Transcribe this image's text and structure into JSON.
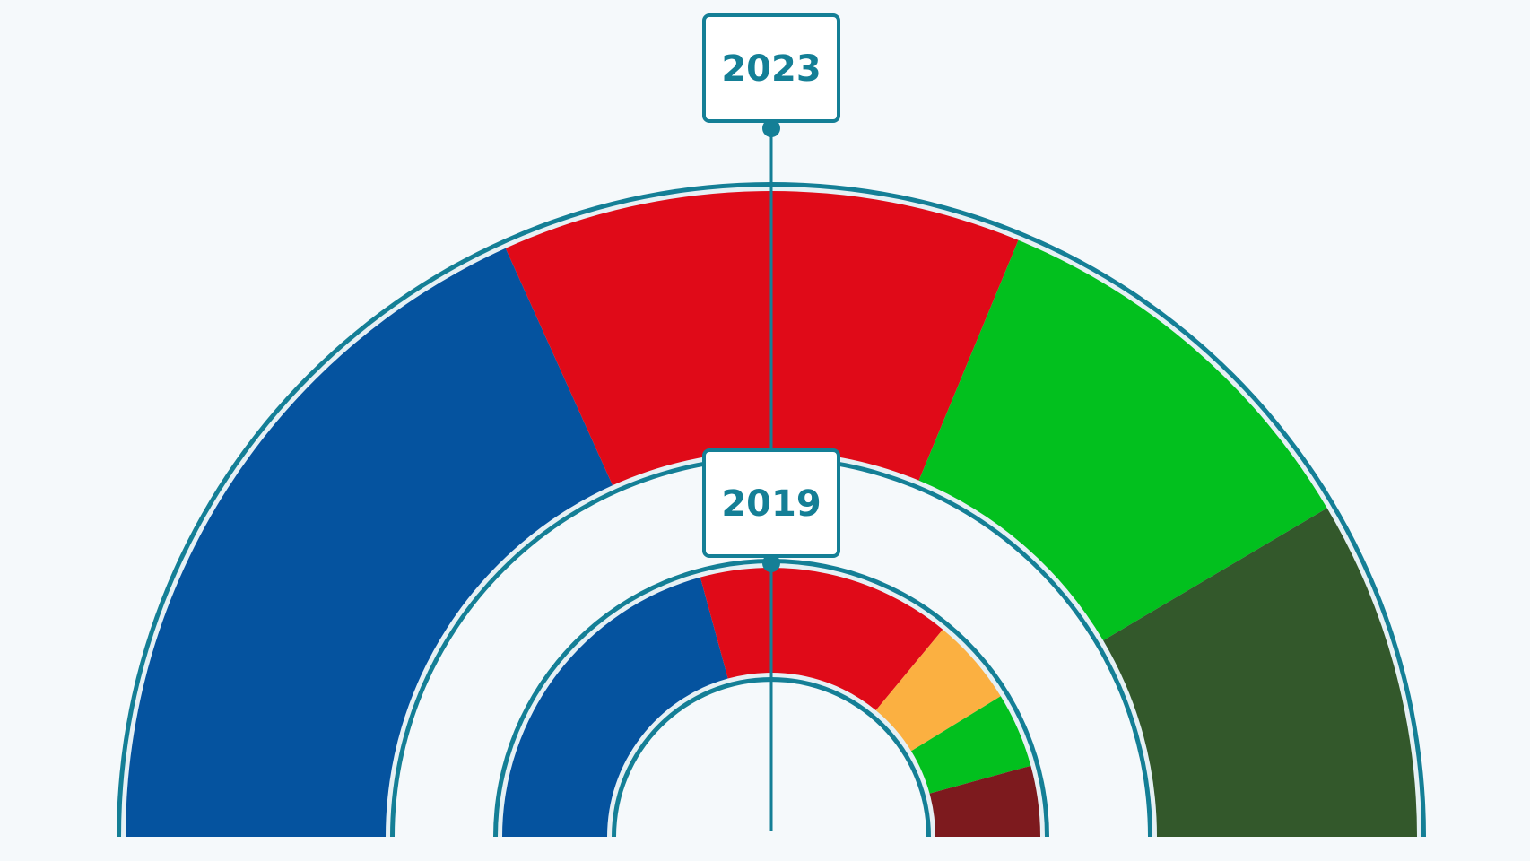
{
  "colors": {
    "frame": "#147f96",
    "background": "#f5f9fb",
    "box_fill": "#ffffff"
  },
  "chart_data": [
    {
      "type": "pie",
      "variant": "parliament-semicircle",
      "year_label": "2023",
      "slices": [
        {
          "share": 0.365,
          "color": "#05539f"
        },
        {
          "share": 0.26,
          "color": "#e00a18"
        },
        {
          "share": 0.205,
          "color": "#02c01e"
        },
        {
          "share": 0.17,
          "color": "#33582b"
        }
      ]
    },
    {
      "type": "pie",
      "variant": "parliament-semicircle",
      "year_label": "2019",
      "slices": [
        {
          "share": 0.415,
          "color": "#05539f"
        },
        {
          "share": 0.305,
          "color": "#e00a18"
        },
        {
          "share": 0.105,
          "color": "#fbb041"
        },
        {
          "share": 0.09,
          "color": "#02c01e"
        },
        {
          "share": 0.085,
          "color": "#7d1a1e"
        }
      ]
    }
  ]
}
